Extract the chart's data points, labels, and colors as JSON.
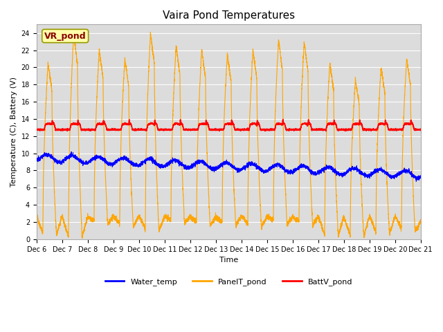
{
  "title": "Vaira Pond Temperatures",
  "ylabel": "Temperature (C), Battery (V)",
  "xlabel": "Time",
  "annotation": "VR_pond",
  "ylim": [
    0,
    25
  ],
  "yticks": [
    0,
    2,
    4,
    6,
    8,
    10,
    12,
    14,
    16,
    18,
    20,
    22,
    24
  ],
  "num_days": 15,
  "xtick_labels": [
    "Dec 6",
    "Dec 7",
    "Dec 8",
    "Dec 9",
    "Dec 10",
    "Dec 11",
    "Dec 12",
    "Dec 13",
    "Dec 14",
    "Dec 15",
    "Dec 16",
    "Dec 17",
    "Dec 18",
    "Dec 19",
    "Dec 20",
    "Dec 21"
  ],
  "colors": {
    "water_temp": "#0000ff",
    "panel_temp": "#ffa500",
    "batt_v": "#ff0000",
    "bg": "#dcdcdc",
    "annotation_bg": "#ffffaa",
    "annotation_border": "#999900",
    "annotation_text": "#880000"
  },
  "legend_labels": [
    "Water_temp",
    "PanelT_pond",
    "BattV_pond"
  ],
  "day_peaks": [
    20.5,
    24.0,
    22.0,
    21.0,
    24.0,
    22.5,
    22.0,
    21.5,
    22.0,
    23.2,
    23.0,
    20.5,
    18.5,
    20.0,
    21.0
  ],
  "day_mins": [
    0.6,
    0.3,
    2.2,
    1.8,
    1.2,
    2.3,
    2.0,
    2.0,
    1.8,
    2.2,
    2.0,
    0.5,
    0.4,
    0.8,
    1.2
  ],
  "title_fontsize": 11,
  "axis_fontsize": 8,
  "tick_fontsize": 7
}
